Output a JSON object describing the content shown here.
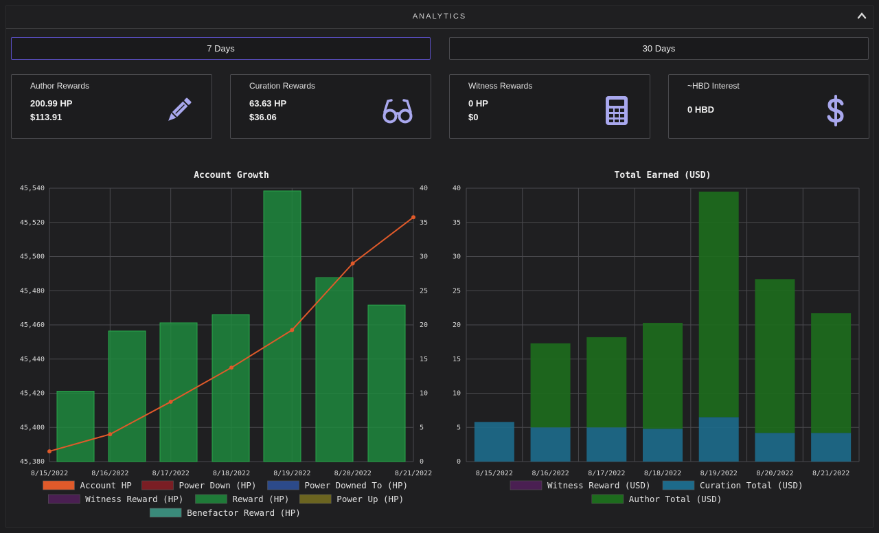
{
  "header": {
    "title": "ANALYTICS"
  },
  "tabs": [
    {
      "label": "7 Days",
      "active": true
    },
    {
      "label": "30 Days",
      "active": false
    }
  ],
  "cards": [
    {
      "label": "Author Rewards",
      "v1": "200.99 HP",
      "v2": "$113.91",
      "icon": "pencil-icon"
    },
    {
      "label": "Curation Rewards",
      "v1": "63.63 HP",
      "v2": "$36.06",
      "icon": "glasses-icon"
    },
    {
      "label": "Witness Rewards",
      "v1": "0 HP",
      "v2": "$0",
      "icon": "calculator-icon"
    },
    {
      "label": "~HBD Interest",
      "v1": "0 HBD",
      "v2": "",
      "icon": "dollar-icon"
    }
  ],
  "colors": {
    "accent": "#5a4fc4",
    "icon": "#a9a8ee",
    "bar_green": "#1f8c3e",
    "line_orange": "#e05a2a",
    "dark_green": "#1d6b1d",
    "curation_teal": "#1d6a8a",
    "witness_purple": "#4a1f52"
  },
  "chart_data": [
    {
      "type": "bar",
      "title": "Account Growth",
      "categories": [
        "8/15/2022",
        "8/16/2022",
        "8/17/2022",
        "8/18/2022",
        "8/19/2022",
        "8/20/2022",
        "8/21/2022"
      ],
      "y_left": {
        "min": 45380,
        "max": 45540,
        "ticks": [
          "45,380",
          "45,400",
          "45,420",
          "45,440",
          "45,460",
          "45,480",
          "45,500",
          "45,520",
          "45,540"
        ]
      },
      "y_right": {
        "min": 0,
        "max": 40,
        "ticks": [
          "0",
          "5",
          "10",
          "15",
          "20",
          "25",
          "30",
          "35",
          "40"
        ]
      },
      "series": [
        {
          "name": "Account HP",
          "kind": "line",
          "axis": "left",
          "color": "#e05a2a",
          "values": [
            45386,
            45396,
            45415,
            45435,
            45457,
            45496,
            45523
          ]
        },
        {
          "name": "Reward (HP)",
          "kind": "bar",
          "axis": "right",
          "color": "#1f8c3e",
          "values": [
            10.3,
            19.1,
            20.3,
            21.5,
            39.6,
            26.9,
            22.9
          ]
        }
      ],
      "legend": [
        {
          "name": "Account HP",
          "color": "#e05a2a"
        },
        {
          "name": "Power Down (HP)",
          "color": "#7a1e24"
        },
        {
          "name": "Power Downed To (HP)",
          "color": "#2c4a8a"
        },
        {
          "name": "Witness Reward (HP)",
          "color": "#4a1f52"
        },
        {
          "name": "Reward (HP)",
          "color": "#1f7a38"
        },
        {
          "name": "Power Up (HP)",
          "color": "#6b6420"
        },
        {
          "name": "Benefactor Reward (HP)",
          "color": "#3a8a7a"
        }
      ],
      "legend_position": "bottom"
    },
    {
      "type": "bar",
      "title": "Total Earned (USD)",
      "stacked": true,
      "categories": [
        "8/15/2022",
        "8/16/2022",
        "8/17/2022",
        "8/18/2022",
        "8/19/2022",
        "8/20/2022",
        "8/21/2022"
      ],
      "y": {
        "min": 0,
        "max": 40,
        "ticks": [
          "0",
          "5",
          "10",
          "15",
          "20",
          "25",
          "30",
          "35",
          "40"
        ]
      },
      "series": [
        {
          "name": "Witness Reward (USD)",
          "color": "#4a1f52",
          "values": [
            0,
            0,
            0,
            0,
            0,
            0,
            0
          ]
        },
        {
          "name": "Curation Total (USD)",
          "color": "#1d6a8a",
          "values": [
            5.8,
            5.0,
            5.0,
            4.8,
            6.5,
            4.2,
            4.2
          ]
        },
        {
          "name": "Author Total (USD)",
          "color": "#1d6b1d",
          "values": [
            0,
            12.3,
            13.2,
            15.5,
            33.0,
            22.5,
            17.5
          ]
        }
      ],
      "legend": [
        {
          "name": "Witness Reward (USD)",
          "color": "#4a1f52"
        },
        {
          "name": "Curation Total (USD)",
          "color": "#1d6a8a"
        },
        {
          "name": "Author Total (USD)",
          "color": "#1d6b1d"
        }
      ],
      "legend_position": "bottom"
    }
  ]
}
